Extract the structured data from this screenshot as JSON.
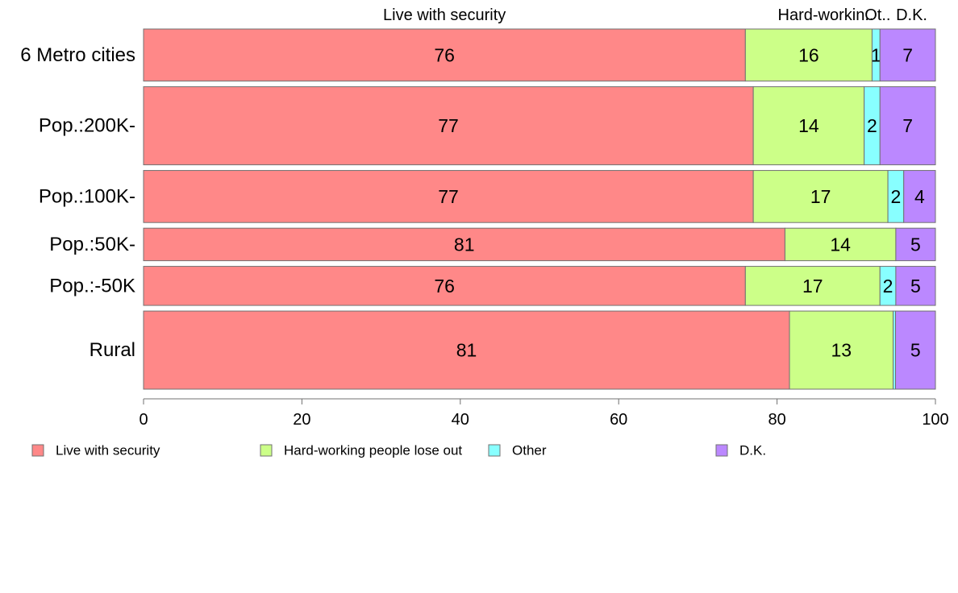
{
  "chart_data": {
    "type": "bar",
    "orientation": "horizontal",
    "stacked": true,
    "categories": [
      "6 Metro cities",
      "Pop.:200K-",
      "Pop.:100K-",
      "Pop.:50K-",
      "Pop.:-50K",
      "Rural"
    ],
    "series": [
      {
        "name": "Live with security",
        "color": "#FF8888",
        "values": [
          76,
          77,
          77,
          81,
          76,
          81
        ],
        "labels": [
          "76",
          "77",
          "77",
          "81",
          "76",
          "81"
        ]
      },
      {
        "name": "Hard-working people lose out",
        "color": "#CCFF88",
        "values": [
          16,
          14,
          17,
          14,
          17,
          13
        ],
        "labels": [
          "16",
          "14",
          "17",
          "14",
          "17",
          "13"
        ]
      },
      {
        "name": "Other",
        "color": "#88FFFF",
        "values": [
          1,
          2,
          2,
          0,
          2,
          0.3
        ],
        "labels": [
          "1",
          "2",
          "2",
          "",
          "2",
          ""
        ]
      },
      {
        "name": "D.K.",
        "color": "#BB88FF",
        "values": [
          7,
          7,
          4,
          5,
          5,
          5
        ],
        "labels": [
          "7",
          "7",
          "4",
          "5",
          "5",
          "5"
        ]
      }
    ],
    "bar_weights": [
      8,
      12,
      8,
      5,
      6,
      12
    ],
    "top_labels": [
      "Live with security",
      "Hard-workin..",
      "Ot..",
      "D.K."
    ],
    "xlim": [
      0,
      100
    ],
    "xticks": [
      "0",
      "20",
      "40",
      "60",
      "80",
      "100"
    ],
    "grid": false,
    "legend_position": "bottom"
  }
}
